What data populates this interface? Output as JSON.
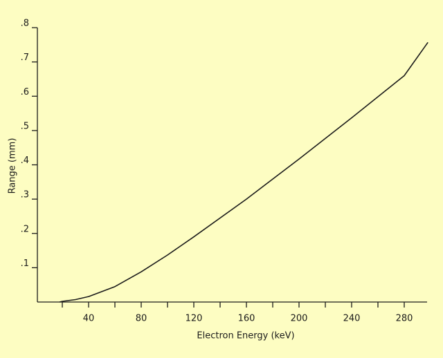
{
  "chart_data": {
    "type": "line",
    "x_label": "Electron Energy (keV)",
    "y_label": "Range (mm)",
    "x": [
      18,
      20,
      30,
      40,
      60,
      80,
      100,
      120,
      160,
      200,
      240,
      280,
      298
    ],
    "series": [
      {
        "color": "#1a1a1a",
        "values": [
          0,
          0.002,
          0.007,
          0.016,
          0.045,
          0.088,
          0.137,
          0.19,
          0.3,
          0.417,
          0.537,
          0.66,
          0.757
        ]
      }
    ],
    "xlim": [
      0,
      300
    ],
    "ylim": [
      0,
      0.8
    ],
    "xticks": [
      {
        "value": 20,
        "label": null
      },
      40,
      {
        "value": 60,
        "label": null
      },
      80,
      {
        "value": 100,
        "label": null
      },
      120,
      {
        "value": 140,
        "label": null
      },
      160,
      {
        "value": 180,
        "label": null
      },
      200,
      {
        "value": 220,
        "label": null
      },
      240,
      {
        "value": 260,
        "label": null
      },
      280
    ],
    "yticks": [
      {
        "value": 0.1,
        "label": ".1"
      },
      {
        "value": 0.2,
        "label": ".2"
      },
      {
        "value": 0.3,
        "label": ".3"
      },
      {
        "value": 0.4,
        "label": ".4"
      },
      {
        "value": 0.5,
        "label": ".5"
      },
      {
        "value": 0.6,
        "label": ".6"
      },
      {
        "value": 0.7,
        "label": ".7"
      },
      {
        "value": 0.8,
        "label": ".8"
      }
    ],
    "grid": false
  }
}
